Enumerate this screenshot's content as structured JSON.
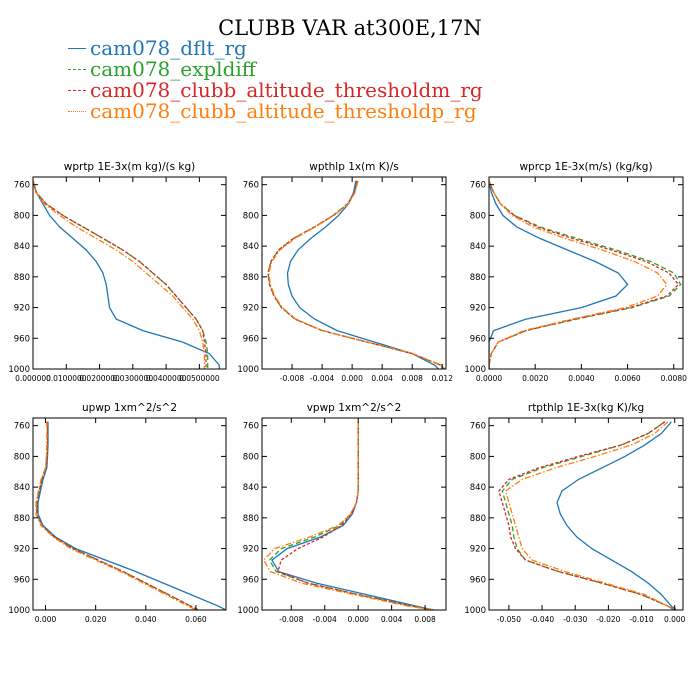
{
  "title": "CLUBB VAR at300E,17N",
  "colors": {
    "dflt": "#1f77b4",
    "expldiff": "#2ca02c",
    "threshm": "#d62728",
    "threshp": "#ff7f0e"
  },
  "legend": [
    {
      "label": "cam078_dflt_rg",
      "color": "#1f77b4",
      "style": "solid"
    },
    {
      "label": "cam078_expldiff",
      "color": "#2ca02c",
      "style": "dashed"
    },
    {
      "label": "cam078_clubb_altitude_thresholdm_rg",
      "color": "#d62728",
      "style": "dashed"
    },
    {
      "label": "cam078_clubb_altitude_thresholdp_rg",
      "color": "#ff7f0e",
      "style": "dashdot"
    }
  ],
  "chart_data": [
    {
      "type": "line",
      "title": "wprtp  1E-3x(m kg)/(s kg)",
      "xlim": [
        0.0,
        0.058
      ],
      "ylim": [
        1000,
        750
      ],
      "xticks": [
        0.0,
        0.01,
        0.02,
        0.03,
        0.04,
        0.05
      ],
      "xticklabels": [
        "0.000000",
        "0.0100000",
        "0.0200000",
        "0.0300000",
        "0.0400000",
        "0.0500000"
      ],
      "yticks": [
        760,
        800,
        840,
        880,
        920,
        960,
        1000
      ],
      "y": [
        755,
        770,
        785,
        800,
        815,
        830,
        845,
        860,
        875,
        890,
        905,
        920,
        935,
        950,
        965,
        980,
        995,
        1000
      ],
      "series": [
        {
          "name": "cam078_dflt_rg",
          "x": [
            0.0,
            0.001,
            0.003,
            0.005,
            0.008,
            0.012,
            0.016,
            0.019,
            0.021,
            0.022,
            0.0225,
            0.023,
            0.025,
            0.033,
            0.045,
            0.053,
            0.056,
            0.056
          ]
        },
        {
          "name": "cam078_expldiff",
          "x": [
            0.0,
            0.001,
            0.004,
            0.009,
            0.015,
            0.021,
            0.027,
            0.032,
            0.036,
            0.04,
            0.043,
            0.046,
            0.049,
            0.051,
            0.052,
            0.0525,
            0.0525,
            0.0525
          ]
        },
        {
          "name": "cam078_clubb_altitude_thresholdm_rg",
          "x": [
            0.0,
            0.001,
            0.004,
            0.009,
            0.015,
            0.021,
            0.027,
            0.032,
            0.036,
            0.04,
            0.043,
            0.046,
            0.049,
            0.051,
            0.0515,
            0.052,
            0.052,
            0.052
          ]
        },
        {
          "name": "cam078_clubb_altitude_thresholdp_rg",
          "x": [
            0.0,
            0.0008,
            0.0035,
            0.008,
            0.013,
            0.019,
            0.025,
            0.03,
            0.034,
            0.038,
            0.042,
            0.045,
            0.048,
            0.05,
            0.051,
            0.0515,
            0.0515,
            0.0515
          ]
        }
      ]
    },
    {
      "type": "line",
      "title": "wpthlp  1x(m K)/s",
      "xlim": [
        -0.012,
        0.0125
      ],
      "ylim": [
        1000,
        750
      ],
      "xticks": [
        -0.008,
        -0.004,
        0.0,
        0.004,
        0.008,
        0.012
      ],
      "xticklabels": [
        "-0.008",
        "-0.004",
        "0.000",
        "0.004",
        "0.008",
        "0.012"
      ],
      "yticks": [
        760,
        800,
        840,
        880,
        920,
        960,
        1000
      ],
      "y": [
        755,
        770,
        785,
        800,
        815,
        830,
        845,
        860,
        875,
        890,
        905,
        920,
        935,
        950,
        965,
        980,
        995,
        1000
      ],
      "series": [
        {
          "name": "cam078_dflt_rg",
          "x": [
            0.0005,
            0.0002,
            -0.0005,
            -0.0018,
            -0.0035,
            -0.0055,
            -0.0072,
            -0.0082,
            -0.0086,
            -0.0085,
            -0.008,
            -0.007,
            -0.005,
            -0.002,
            0.003,
            0.008,
            0.011,
            0.0115
          ]
        },
        {
          "name": "cam078_expldiff",
          "x": [
            0.0007,
            0.0003,
            -0.0006,
            -0.0025,
            -0.005,
            -0.0078,
            -0.0098,
            -0.0108,
            -0.0112,
            -0.011,
            -0.0104,
            -0.0094,
            -0.0076,
            -0.004,
            0.002,
            0.008,
            0.0118,
            0.0122
          ]
        },
        {
          "name": "cam078_clubb_altitude_thresholdm_rg",
          "x": [
            0.0007,
            0.0003,
            -0.0006,
            -0.0025,
            -0.005,
            -0.0078,
            -0.0098,
            -0.0108,
            -0.0112,
            -0.011,
            -0.0104,
            -0.0094,
            -0.0076,
            -0.004,
            0.002,
            0.008,
            0.0118,
            0.0122
          ]
        },
        {
          "name": "cam078_clubb_altitude_thresholdp_rg",
          "x": [
            0.0008,
            0.0004,
            -0.0005,
            -0.0024,
            -0.0049,
            -0.0076,
            -0.0096,
            -0.0107,
            -0.0111,
            -0.0109,
            -0.0103,
            -0.0093,
            -0.0075,
            -0.0039,
            0.0021,
            0.0081,
            0.0119,
            0.0123
          ]
        }
      ]
    },
    {
      "type": "line",
      "title": "wprcp  1E-3x(m/s) (kg/kg)",
      "xlim": [
        0.0,
        0.0084
      ],
      "ylim": [
        1000,
        750
      ],
      "xticks": [
        0.0,
        0.002,
        0.004,
        0.006,
        0.008
      ],
      "xticklabels": [
        "0.0000",
        "0.0020",
        "0.0040",
        "0.0060",
        "0.0080"
      ],
      "yticks": [
        760,
        800,
        840,
        880,
        920,
        960,
        1000
      ],
      "y": [
        755,
        770,
        785,
        800,
        815,
        830,
        845,
        860,
        875,
        890,
        905,
        920,
        935,
        950,
        965,
        980,
        995,
        1000
      ],
      "series": [
        {
          "name": "cam078_dflt_rg",
          "x": [
            0.0,
            0.0001,
            0.0003,
            0.0006,
            0.0012,
            0.0022,
            0.0034,
            0.0046,
            0.0056,
            0.006,
            0.0055,
            0.004,
            0.0016,
            0.0002,
            0.0,
            0.0,
            0.0,
            0.0
          ]
        },
        {
          "name": "cam078_expldiff",
          "x": [
            0.0,
            0.0002,
            0.0005,
            0.0011,
            0.0022,
            0.0038,
            0.0055,
            0.007,
            0.008,
            0.0083,
            0.0078,
            0.0062,
            0.0038,
            0.0016,
            0.0004,
            0.0001,
            0.0,
            0.0
          ]
        },
        {
          "name": "cam078_clubb_altitude_thresholdm_rg",
          "x": [
            0.0,
            0.0002,
            0.0005,
            0.0011,
            0.0021,
            0.0036,
            0.0053,
            0.0068,
            0.0078,
            0.0082,
            0.0077,
            0.0061,
            0.0037,
            0.0016,
            0.0004,
            0.0001,
            0.0,
            0.0
          ]
        },
        {
          "name": "cam078_clubb_altitude_thresholdp_rg",
          "x": [
            0.0,
            0.0002,
            0.0005,
            0.001,
            0.0019,
            0.0033,
            0.0049,
            0.0063,
            0.0073,
            0.0077,
            0.0073,
            0.0059,
            0.0036,
            0.0015,
            0.0004,
            0.0001,
            0.0,
            0.0
          ]
        }
      ]
    },
    {
      "type": "line",
      "title": "upwp  1xm^2/s^2",
      "xlim": [
        -0.005,
        0.072
      ],
      "ylim": [
        1000,
        750
      ],
      "xticks": [
        0.0,
        0.02,
        0.04,
        0.06
      ],
      "xticklabels": [
        "0.000",
        "0.020",
        "0.040",
        "0.060"
      ],
      "yticks": [
        760,
        800,
        840,
        880,
        920,
        960,
        1000
      ],
      "y": [
        755,
        770,
        785,
        800,
        815,
        830,
        845,
        860,
        875,
        890,
        905,
        920,
        935,
        950,
        965,
        980,
        995,
        1000
      ],
      "series": [
        {
          "name": "cam078_dflt_rg",
          "x": [
            0.001,
            0.001,
            0.001,
            0.0008,
            0.0005,
            -0.001,
            -0.002,
            -0.003,
            -0.003,
            -0.001,
            0.004,
            0.012,
            0.024,
            0.036,
            0.047,
            0.058,
            0.069,
            0.072
          ]
        },
        {
          "name": "cam078_expldiff",
          "x": [
            0.0008,
            0.0008,
            0.0008,
            0.0006,
            0.0002,
            -0.0015,
            -0.0025,
            -0.0035,
            -0.0035,
            -0.0015,
            0.0035,
            0.011,
            0.021,
            0.031,
            0.04,
            0.049,
            0.058,
            0.061
          ]
        },
        {
          "name": "cam078_clubb_altitude_thresholdm_rg",
          "x": [
            0.0008,
            0.0008,
            0.0008,
            0.0006,
            0.0002,
            -0.0015,
            -0.0025,
            -0.0035,
            -0.0035,
            -0.0015,
            0.0035,
            0.011,
            0.021,
            0.031,
            0.04,
            0.049,
            0.058,
            0.061
          ]
        },
        {
          "name": "cam078_clubb_altitude_thresholdp_rg",
          "x": [
            0.0005,
            0.0005,
            0.0005,
            0.0003,
            0.0,
            -0.0018,
            -0.0028,
            -0.0038,
            -0.0038,
            -0.0018,
            0.003,
            0.01,
            0.02,
            0.03,
            0.039,
            0.048,
            0.057,
            0.06
          ]
        }
      ]
    },
    {
      "type": "line",
      "title": "vpwp  1xm^2/s^2",
      "xlim": [
        -0.0115,
        0.0105
      ],
      "ylim": [
        1000,
        750
      ],
      "xticks": [
        -0.008,
        -0.004,
        0.0,
        0.004,
        0.008
      ],
      "xticklabels": [
        "-0.008",
        "-0.004",
        "0.000",
        "0.004",
        "0.008"
      ],
      "yticks": [
        760,
        800,
        840,
        880,
        920,
        960,
        1000
      ],
      "y": [
        755,
        770,
        785,
        800,
        815,
        830,
        845,
        860,
        875,
        890,
        905,
        920,
        935,
        950,
        965,
        980,
        995,
        1000
      ],
      "series": [
        {
          "name": "cam078_dflt_rg",
          "x": [
            0.0,
            0.0,
            0.0,
            0.0,
            0.0,
            0.0,
            0.0,
            -0.0002,
            -0.0007,
            -0.0018,
            -0.0045,
            -0.0085,
            -0.0103,
            -0.0095,
            -0.005,
            0.001,
            0.007,
            0.009
          ]
        },
        {
          "name": "cam078_expldiff",
          "x": [
            0.0,
            0.0,
            0.0,
            0.0,
            0.0,
            0.0,
            0.0,
            -0.0002,
            -0.0009,
            -0.0022,
            -0.0052,
            -0.0092,
            -0.0106,
            -0.0098,
            -0.006,
            0.0,
            0.0065,
            0.009
          ]
        },
        {
          "name": "cam078_clubb_altitude_thresholdm_rg",
          "x": [
            0.0,
            0.0,
            0.0,
            0.0,
            0.0,
            0.0,
            0.0,
            -0.0002,
            -0.0008,
            -0.002,
            -0.0042,
            -0.0072,
            -0.0092,
            -0.0096,
            -0.006,
            0.0,
            0.0065,
            0.009
          ]
        },
        {
          "name": "cam078_clubb_altitude_thresholdp_rg",
          "x": [
            0.0,
            0.0,
            0.0,
            0.0,
            0.0,
            0.0,
            0.0,
            -0.0002,
            -0.0009,
            -0.0024,
            -0.0058,
            -0.01,
            -0.0113,
            -0.0105,
            -0.0068,
            -0.0005,
            0.006,
            0.009
          ]
        }
      ]
    },
    {
      "type": "line",
      "title": "rtpthlp  1E-3x(kg K)/kg",
      "xlim": [
        -0.056,
        0.0025
      ],
      "ylim": [
        1000,
        750
      ],
      "xticks": [
        -0.05,
        -0.04,
        -0.03,
        -0.02,
        -0.01,
        0.0
      ],
      "xticklabels": [
        "-0.050",
        "-0.040",
        "-0.030",
        "-0.020",
        "-0.010",
        "0.000"
      ],
      "yticks": [
        760,
        800,
        840,
        880,
        920,
        960,
        1000
      ],
      "y": [
        755,
        770,
        785,
        800,
        815,
        830,
        845,
        860,
        875,
        890,
        905,
        920,
        935,
        950,
        965,
        980,
        995,
        1000
      ],
      "series": [
        {
          "name": "cam078_dflt_rg",
          "x": [
            -0.001,
            -0.004,
            -0.009,
            -0.015,
            -0.022,
            -0.029,
            -0.034,
            -0.0355,
            -0.0345,
            -0.0325,
            -0.0295,
            -0.025,
            -0.019,
            -0.013,
            -0.008,
            -0.004,
            -0.001,
            0.0005
          ]
        },
        {
          "name": "cam078_expldiff",
          "x": [
            -0.003,
            -0.008,
            -0.016,
            -0.028,
            -0.04,
            -0.049,
            -0.052,
            -0.051,
            -0.05,
            -0.049,
            -0.0485,
            -0.0475,
            -0.045,
            -0.035,
            -0.022,
            -0.01,
            -0.002,
            0.0
          ]
        },
        {
          "name": "cam078_clubb_altitude_thresholdm_rg",
          "x": [
            -0.003,
            -0.008,
            -0.016,
            -0.029,
            -0.041,
            -0.05,
            -0.053,
            -0.052,
            -0.051,
            -0.05,
            -0.0495,
            -0.048,
            -0.045,
            -0.035,
            -0.022,
            -0.01,
            -0.002,
            0.0
          ]
        },
        {
          "name": "cam078_clubb_altitude_thresholdp_rg",
          "x": [
            -0.002,
            -0.006,
            -0.013,
            -0.024,
            -0.036,
            -0.046,
            -0.051,
            -0.05,
            -0.049,
            -0.048,
            -0.047,
            -0.046,
            -0.043,
            -0.033,
            -0.021,
            -0.009,
            -0.002,
            0.0
          ]
        }
      ]
    }
  ]
}
